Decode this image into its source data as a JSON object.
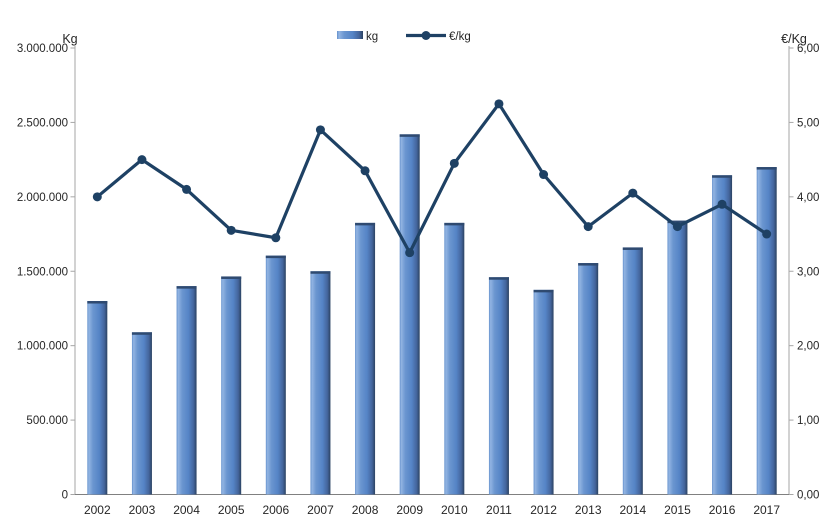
{
  "chart_data": {
    "type": "bar+line",
    "title": "",
    "categories": [
      "2002",
      "2003",
      "2004",
      "2005",
      "2006",
      "2007",
      "2008",
      "2009",
      "2010",
      "2011",
      "2012",
      "2013",
      "2014",
      "2015",
      "2016",
      "2017"
    ],
    "series": [
      {
        "name": "kg",
        "type": "bar",
        "axis": "left",
        "values": [
          1300000,
          1090000,
          1400000,
          1465000,
          1605000,
          1500000,
          1825000,
          2420000,
          1825000,
          1460000,
          1375000,
          1555000,
          1660000,
          1840000,
          2145000,
          2200000
        ]
      },
      {
        "name": "€/kg",
        "type": "line",
        "axis": "right",
        "values": [
          4.0,
          4.5,
          4.1,
          3.55,
          3.45,
          4.9,
          4.35,
          3.25,
          4.45,
          5.25,
          4.3,
          3.6,
          4.05,
          3.6,
          3.9,
          3.5
        ]
      }
    ],
    "left_axis": {
      "title": "Kg",
      "min": 0,
      "max": 3000000,
      "step": 500000,
      "tick_labels": [
        "0",
        "500.000",
        "1.000.000",
        "1.500.000",
        "2.000.000",
        "2.500.000",
        "3.000.000"
      ]
    },
    "right_axis": {
      "title": "€/Kg",
      "min": 0,
      "max": 6,
      "step": 1,
      "tick_labels": [
        "0,00",
        "1,00",
        "2,00",
        "3,00",
        "4,00",
        "5,00",
        "6,00"
      ]
    },
    "legend_position": "top-center",
    "grid": false,
    "colors": {
      "bar_fill": "#5584C6",
      "bar_highlight": "#92B4E2",
      "bar_shadow": "#2B4261",
      "bar_top": "#2F4A70",
      "line": "#1E4164",
      "axis_line": "#A6A6A6",
      "x_axis_line": "#808080",
      "text": "#262626"
    }
  }
}
